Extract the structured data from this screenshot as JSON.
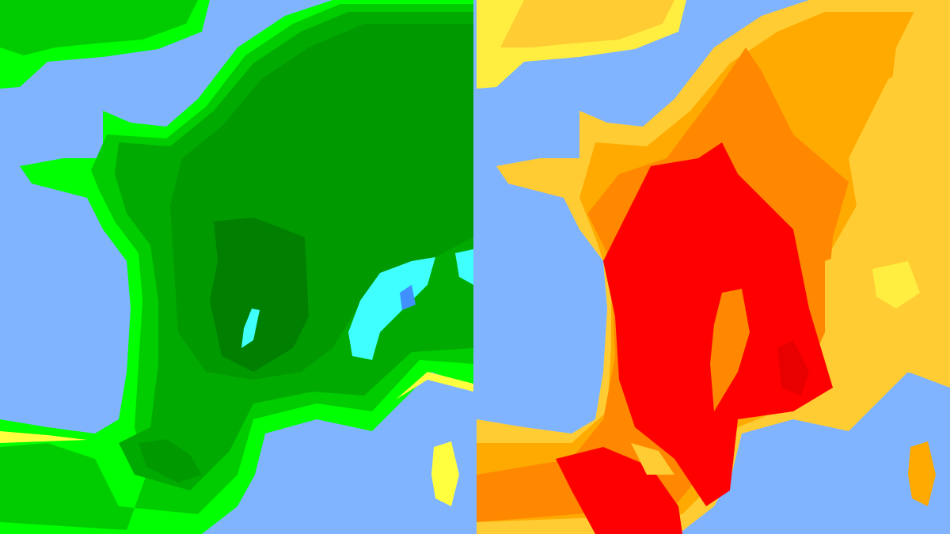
{
  "left_map": {
    "colors": {
      "sea": "#80b4ff",
      "level_1": "#ffff40",
      "level_2": "#00ff00",
      "level_3": "#00cc00",
      "level_4": "#00aa00",
      "level_5": "#009900",
      "level_6": "#007f00",
      "alpine_light": "#40ffff",
      "alpine_dark": "#4090ff"
    }
  },
  "right_map": {
    "colors": {
      "sea": "#80b4ff",
      "level_1": "#ffee40",
      "level_2": "#ffcc33",
      "level_3": "#ffaa00",
      "level_4": "#ff8800",
      "level_5": "#ff0000",
      "level_6": "#e80000"
    }
  }
}
